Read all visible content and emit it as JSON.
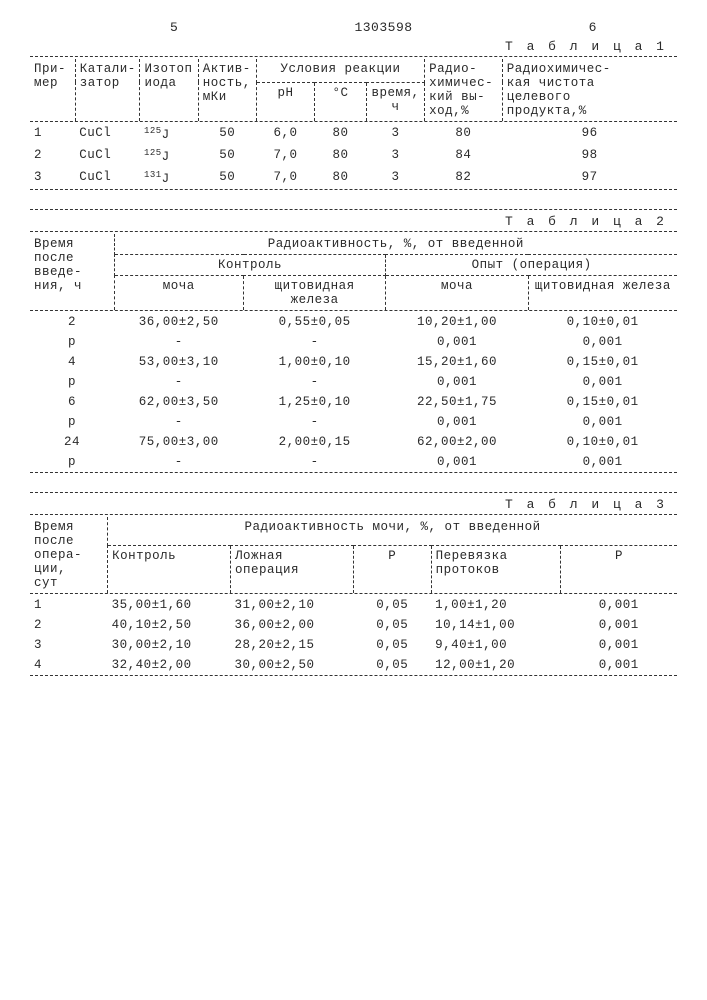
{
  "page_left": "5",
  "docnum": "1303598",
  "page_right": "6",
  "t1": {
    "label": "Т а б л и ц а  1",
    "h": {
      "c1": "При-\nмер",
      "c2": "Катали-\nзатор",
      "c3": "Изотоп\nиода",
      "c4": "Актив-\nность,\nмКи",
      "c5": "Условия реакции",
      "c5a": "pH",
      "c5b": "°C",
      "c5c": "время,\nч",
      "c6": "Радио-\nхимичес-\nкий вы-\nход,%",
      "c7": "Радиохимичес-\nкая чистота\nцелевого\nпродукта,%"
    },
    "rows": [
      {
        "n": "1",
        "cat": "CuCl",
        "iso": "125",
        "isoJ": "J",
        "act": "50",
        "ph": "6,0",
        "t": "80",
        "time": "3",
        "y": "80",
        "p": "96"
      },
      {
        "n": "2",
        "cat": "CuCl",
        "iso": "125",
        "isoJ": "J",
        "act": "50",
        "ph": "7,0",
        "t": "80",
        "time": "3",
        "y": "84",
        "p": "98"
      },
      {
        "n": "3",
        "cat": "CuCl",
        "iso": "131",
        "isoJ": "J",
        "act": "50",
        "ph": "7,0",
        "t": "80",
        "time": "3",
        "y": "82",
        "p": "97"
      }
    ]
  },
  "t2": {
    "label": "Т а б л и ц а  2",
    "h": {
      "c1": "Время\nпосле\nвведе-\nния, ч",
      "top": "Радиоактивность, %, от введенной",
      "g1": "Контроль",
      "g2": "Опыт (операция)",
      "s1": "моча",
      "s2": "щитовидная железа",
      "s3": "моча",
      "s4": "щитовидная железа"
    },
    "rows": [
      {
        "t": "2",
        "a": "36,00±2,50",
        "b": "0,55±0,05",
        "c": "10,20±1,00",
        "d": "0,10±0,01"
      },
      {
        "t": "p",
        "a": "-",
        "b": "-",
        "c": "0,001",
        "d": "0,001"
      },
      {
        "t": "4",
        "a": "53,00±3,10",
        "b": "1,00±0,10",
        "c": "15,20±1,60",
        "d": "0,15±0,01"
      },
      {
        "t": "p",
        "a": "-",
        "b": "-",
        "c": "0,001",
        "d": "0,001"
      },
      {
        "t": "6",
        "a": "62,00±3,50",
        "b": "1,25±0,10",
        "c": "22,50±1,75",
        "d": "0,15±0,01"
      },
      {
        "t": "p",
        "a": "-",
        "b": "-",
        "c": "0,001",
        "d": "0,001"
      },
      {
        "t": "24",
        "a": "75,00±3,00",
        "b": "2,00±0,15",
        "c": "62,00±2,00",
        "d": "0,10±0,01"
      },
      {
        "t": "p",
        "a": "-",
        "b": "-",
        "c": "0,001",
        "d": "0,001"
      }
    ]
  },
  "t3": {
    "label": "Т а б л и ц а  3",
    "h": {
      "c1": "Время\nпосле\nопера-\nции,\nсут",
      "top": "Радиоактивность мочи, %, от введенной",
      "s1": "Контроль",
      "s2": "Ложная\nоперация",
      "s3": "P",
      "s4": "Перевязка\nпротоков",
      "s5": "P"
    },
    "rows": [
      {
        "t": "1",
        "a": "35,00±1,60",
        "b": "31,00±2,10",
        "c": "0,05",
        "d": "1,00±1,20",
        "e": "0,001"
      },
      {
        "t": "2",
        "a": "40,10±2,50",
        "b": "36,00±2,00",
        "c": "0,05",
        "d": "10,14±1,00",
        "e": "0,001"
      },
      {
        "t": "3",
        "a": "30,00±2,10",
        "b": "28,20±2,15",
        "c": "0,05",
        "d": "9,40±1,00",
        "e": "0,001"
      },
      {
        "t": "4",
        "a": "32,40±2,00",
        "b": "30,00±2,50",
        "c": "0,05",
        "d": "12,00±1,20",
        "e": "0,001"
      }
    ]
  }
}
